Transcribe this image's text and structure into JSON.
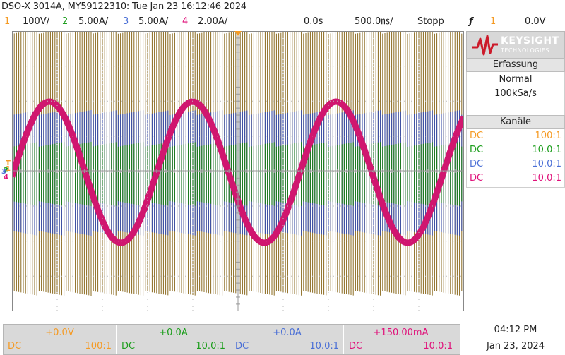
{
  "title": "DSO-X 3014A, MY59122310: Tue Jan 23 16:12:46 2024",
  "colors": {
    "ch1": "#f59a23",
    "ch2": "#1d9e1d",
    "ch3": "#4a6fd6",
    "ch4": "#e0117a",
    "trace_ch1": "#8a6a1e",
    "trace_ch2": "#1c7d1c",
    "trace_ch3": "#3b4fa8",
    "trace_ch4": "#d0166f"
  },
  "channels_top": [
    {
      "num": "1",
      "scale": "100V/"
    },
    {
      "num": "2",
      "scale": "5.00A/"
    },
    {
      "num": "3",
      "scale": "5.00A/"
    },
    {
      "num": "4",
      "scale": "2.00A/"
    }
  ],
  "horizontal": {
    "delay": "0.0s",
    "timebase": "500.0㎱/"
  },
  "run_state": "Stopp",
  "trigger": {
    "icon": "trigger-edge-icon",
    "glyph": "ƒ",
    "source": "1",
    "level": "0.0V"
  },
  "brand": {
    "name": "KEYSIGHT",
    "sub": "TECHNOLOGIES"
  },
  "acquisition": {
    "header": "Erfassung",
    "mode": "Normal",
    "rate": "100kSa/s"
  },
  "channels_panel": {
    "header": "Kanäle",
    "rows": [
      {
        "coupling": "DC",
        "probe": "100:1"
      },
      {
        "coupling": "DC",
        "probe": "10.0:1"
      },
      {
        "coupling": "DC",
        "probe": "10.0:1"
      },
      {
        "coupling": "DC",
        "probe": "10.0:1"
      }
    ]
  },
  "screen_markers": {
    "trigger": "T",
    "ch1": "1",
    "ch2": "2",
    "ch3": "3",
    "ch4": "4"
  },
  "bottom_channels": [
    {
      "offset": "+0.0V",
      "coupling": "DC",
      "probe": "100:1"
    },
    {
      "offset": "+0.0A",
      "coupling": "DC",
      "probe": "10.0:1"
    },
    {
      "offset": "+0.0A",
      "coupling": "DC",
      "probe": "10.0:1"
    },
    {
      "offset": "+150.00mA",
      "coupling": "DC",
      "probe": "10.0:1"
    }
  ],
  "clock": {
    "time": "04:12 PM",
    "date": "Jan 23, 2024"
  }
}
